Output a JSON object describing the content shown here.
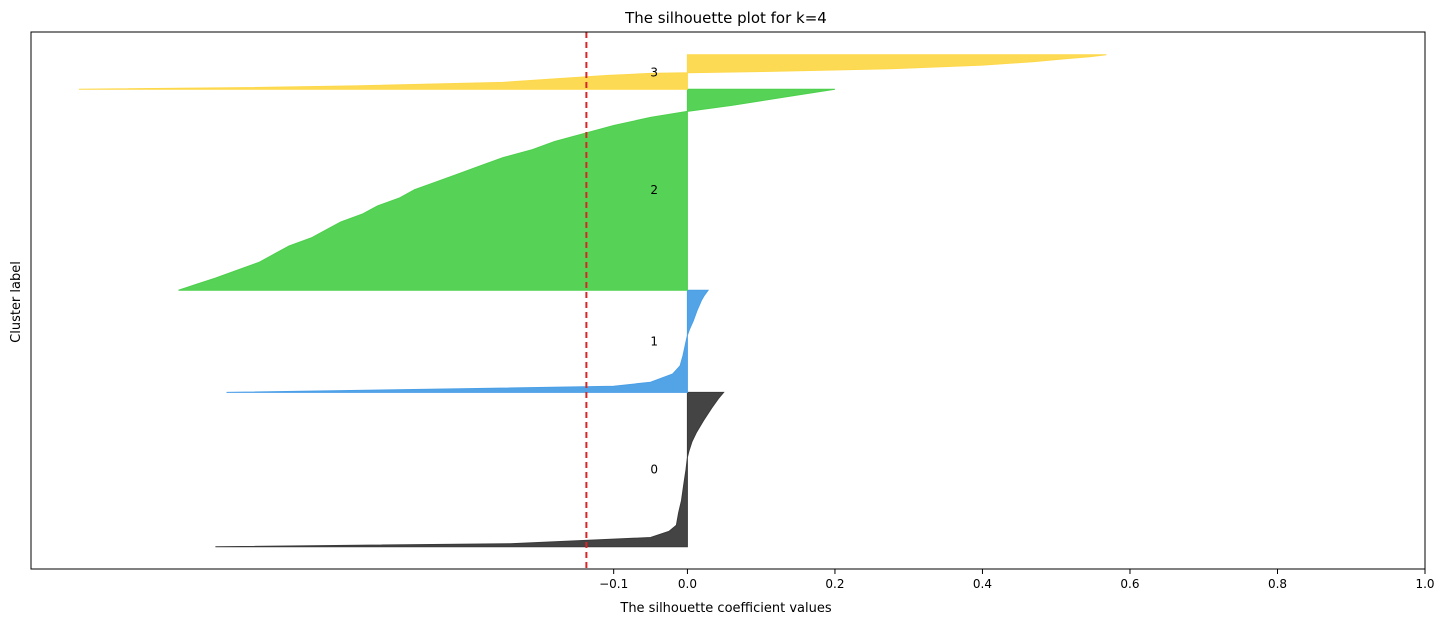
{
  "chart_data": {
    "type": "area",
    "title": "The silhouette plot for k=4",
    "xlabel": "The silhouette coefficient values",
    "ylabel": "Cluster label",
    "xlim": [
      -0.89,
      1.0
    ],
    "ylim": [
      0,
      104
    ],
    "xticks": [
      -0.1,
      0.0,
      0.2,
      0.4,
      0.6,
      0.8,
      1.0
    ],
    "xtick_labels": [
      "−0.1",
      "0.0",
      "0.2",
      "0.4",
      "0.6",
      "0.8",
      "1.0"
    ],
    "yticks": [],
    "grid": false,
    "reference_line": {
      "x": -0.137,
      "color": "#d62728",
      "style": "dashed"
    },
    "clusters": [
      {
        "label": "0",
        "color": "#3a3a3a",
        "y_range": [
          4.3,
          34.2
        ],
        "label_y": 19.3,
        "profile": [
          [
            0,
            -0.64
          ],
          [
            0.02,
            -0.24
          ],
          [
            0.06,
            -0.05
          ],
          [
            0.1,
            -0.025
          ],
          [
            0.14,
            -0.015
          ],
          [
            0.22,
            -0.012
          ],
          [
            0.3,
            -0.008
          ],
          [
            0.4,
            -0.005
          ],
          [
            0.5,
            -0.002
          ],
          [
            0.58,
            0.0
          ],
          [
            0.62,
            0.002
          ],
          [
            0.68,
            0.006
          ],
          [
            0.74,
            0.012
          ],
          [
            0.82,
            0.022
          ],
          [
            0.9,
            0.033
          ],
          [
            0.96,
            0.042
          ],
          [
            1.0,
            0.049
          ]
        ]
      },
      {
        "label": "1",
        "color": "#4a9fe6",
        "y_range": [
          34.2,
          54.0
        ],
        "label_y": 44.1,
        "profile": [
          [
            0,
            -0.625
          ],
          [
            0.03,
            -0.35
          ],
          [
            0.06,
            -0.1
          ],
          [
            0.1,
            -0.05
          ],
          [
            0.18,
            -0.02
          ],
          [
            0.26,
            -0.01
          ],
          [
            0.36,
            -0.006
          ],
          [
            0.46,
            -0.003
          ],
          [
            0.56,
            0.0
          ],
          [
            0.62,
            0.003
          ],
          [
            0.7,
            0.008
          ],
          [
            0.8,
            0.013
          ],
          [
            0.9,
            0.019
          ],
          [
            0.95,
            0.023
          ],
          [
            1.0,
            0.028
          ]
        ]
      },
      {
        "label": "2",
        "color": "#4dd04d",
        "y_range": [
          54.0,
          92.9
        ],
        "label_y": 73.4,
        "profile": [
          [
            0,
            -0.69
          ],
          [
            0.03,
            -0.665
          ],
          [
            0.06,
            -0.64
          ],
          [
            0.1,
            -0.61
          ],
          [
            0.14,
            -0.58
          ],
          [
            0.18,
            -0.56
          ],
          [
            0.22,
            -0.54
          ],
          [
            0.26,
            -0.51
          ],
          [
            0.3,
            -0.49
          ],
          [
            0.34,
            -0.47
          ],
          [
            0.38,
            -0.44
          ],
          [
            0.42,
            -0.42
          ],
          [
            0.46,
            -0.39
          ],
          [
            0.5,
            -0.37
          ],
          [
            0.54,
            -0.34
          ],
          [
            0.58,
            -0.31
          ],
          [
            0.62,
            -0.28
          ],
          [
            0.66,
            -0.25
          ],
          [
            0.7,
            -0.21
          ],
          [
            0.74,
            -0.18
          ],
          [
            0.78,
            -0.14
          ],
          [
            0.82,
            -0.1
          ],
          [
            0.86,
            -0.05
          ],
          [
            0.89,
            0.0
          ],
          [
            0.92,
            0.06
          ],
          [
            0.96,
            0.13
          ],
          [
            1.0,
            0.2
          ]
        ]
      },
      {
        "label": "3",
        "color": "#fdd84a",
        "y_range": [
          92.9,
          99.6
        ],
        "label_y": 96.2,
        "profile": [
          [
            0,
            -0.825
          ],
          [
            0.05,
            -0.6
          ],
          [
            0.1,
            -0.45
          ],
          [
            0.2,
            -0.25
          ],
          [
            0.3,
            -0.18
          ],
          [
            0.4,
            -0.11
          ],
          [
            0.46,
            -0.05
          ],
          [
            0.48,
            0.0
          ],
          [
            0.52,
            0.12
          ],
          [
            0.6,
            0.28
          ],
          [
            0.7,
            0.4
          ],
          [
            0.8,
            0.47
          ],
          [
            0.88,
            0.51
          ],
          [
            0.94,
            0.545
          ],
          [
            1.0,
            0.568
          ]
        ]
      }
    ]
  }
}
